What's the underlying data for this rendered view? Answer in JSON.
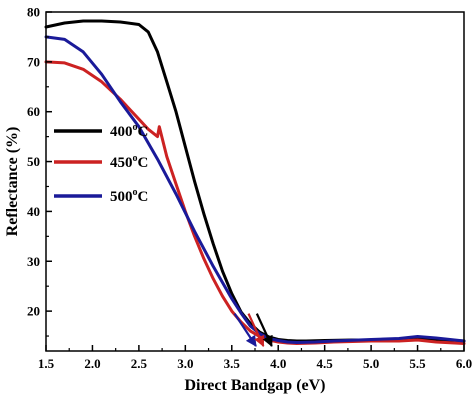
{
  "chart_data": {
    "type": "line",
    "title": "",
    "xlabel": "Direct Bandgap (eV)",
    "ylabel": "Reflectance (%)",
    "xlim": [
      1.5,
      6.0
    ],
    "ylim": [
      12,
      80
    ],
    "xticks": [
      "1.5",
      "2.0",
      "2.5",
      "3.0",
      "3.5",
      "4.0",
      "4.5",
      "5.0",
      "5.5",
      "6.0"
    ],
    "yticks": [
      "20",
      "30",
      "40",
      "50",
      "60",
      "70",
      "80"
    ],
    "grid": false,
    "legend_position": "middle-left",
    "series": [
      {
        "name": "400oC",
        "legend_main": "400",
        "legend_sup": "o",
        "legend_unit": "C",
        "color": "#000000",
        "x": [
          1.5,
          1.7,
          1.9,
          2.1,
          2.3,
          2.5,
          2.6,
          2.7,
          2.8,
          2.9,
          3.0,
          3.1,
          3.2,
          3.3,
          3.4,
          3.5,
          3.6,
          3.7,
          3.8,
          3.9,
          4.0,
          4.1,
          4.2,
          4.3,
          4.5,
          4.8,
          5.0,
          5.3,
          5.5,
          5.7,
          6.0
        ],
        "y": [
          77,
          77.8,
          78.2,
          78.2,
          78,
          77.5,
          76,
          72,
          66,
          60,
          53,
          46,
          39.5,
          33.5,
          28,
          23.5,
          19.8,
          17.5,
          15.8,
          14.8,
          14.3,
          14.1,
          14,
          14,
          14.1,
          14.2,
          14.2,
          14.3,
          14.5,
          14.3,
          14
        ]
      },
      {
        "name": "450oC",
        "legend_main": "450",
        "legend_sup": "o",
        "legend_unit": "C",
        "color": "#cc2222",
        "x": [
          1.5,
          1.7,
          1.9,
          2.1,
          2.3,
          2.5,
          2.6,
          2.7,
          2.72,
          2.8,
          2.9,
          3.0,
          3.1,
          3.2,
          3.3,
          3.4,
          3.5,
          3.6,
          3.7,
          3.8,
          3.9,
          4.0,
          4.1,
          4.2,
          4.4,
          4.6,
          5.0,
          5.3,
          5.5,
          5.7,
          6.0
        ],
        "y": [
          70,
          69.8,
          68.5,
          66,
          62.5,
          58.5,
          56.5,
          55,
          57,
          51,
          45.5,
          40,
          35,
          30.5,
          26.5,
          23,
          20,
          17.8,
          16,
          14.9,
          14.2,
          13.8,
          13.6,
          13.5,
          13.6,
          13.8,
          14,
          14,
          14.2,
          13.8,
          13.5
        ]
      },
      {
        "name": "500oC",
        "legend_main": "500",
        "legend_sup": "o",
        "legend_unit": "C",
        "color": "#1a1a99",
        "x": [
          1.5,
          1.7,
          1.9,
          2.1,
          2.3,
          2.5,
          2.7,
          2.9,
          3.1,
          3.3,
          3.5,
          3.6,
          3.7,
          3.8,
          3.9,
          4.0,
          4.1,
          4.2,
          4.4,
          4.6,
          5.0,
          5.3,
          5.5,
          5.7,
          6.0
        ],
        "y": [
          75,
          74.5,
          72,
          67.5,
          62,
          57,
          50.5,
          43.5,
          36,
          29,
          22.5,
          19.6,
          17,
          15.5,
          14.5,
          14.1,
          13.8,
          13.7,
          13.8,
          14,
          14.3,
          14.5,
          14.9,
          14.6,
          14
        ]
      }
    ],
    "annotations": [
      {
        "type": "arrow",
        "color": "#1a1a99",
        "from": [
          3.53,
          19.5
        ],
        "to": [
          3.76,
          13
        ]
      },
      {
        "type": "arrow",
        "color": "#cc2222",
        "from": [
          3.68,
          19.5
        ],
        "to": [
          3.84,
          13
        ]
      },
      {
        "type": "arrow",
        "color": "#000000",
        "from": [
          3.77,
          19.5
        ],
        "to": [
          3.93,
          13
        ]
      }
    ]
  }
}
